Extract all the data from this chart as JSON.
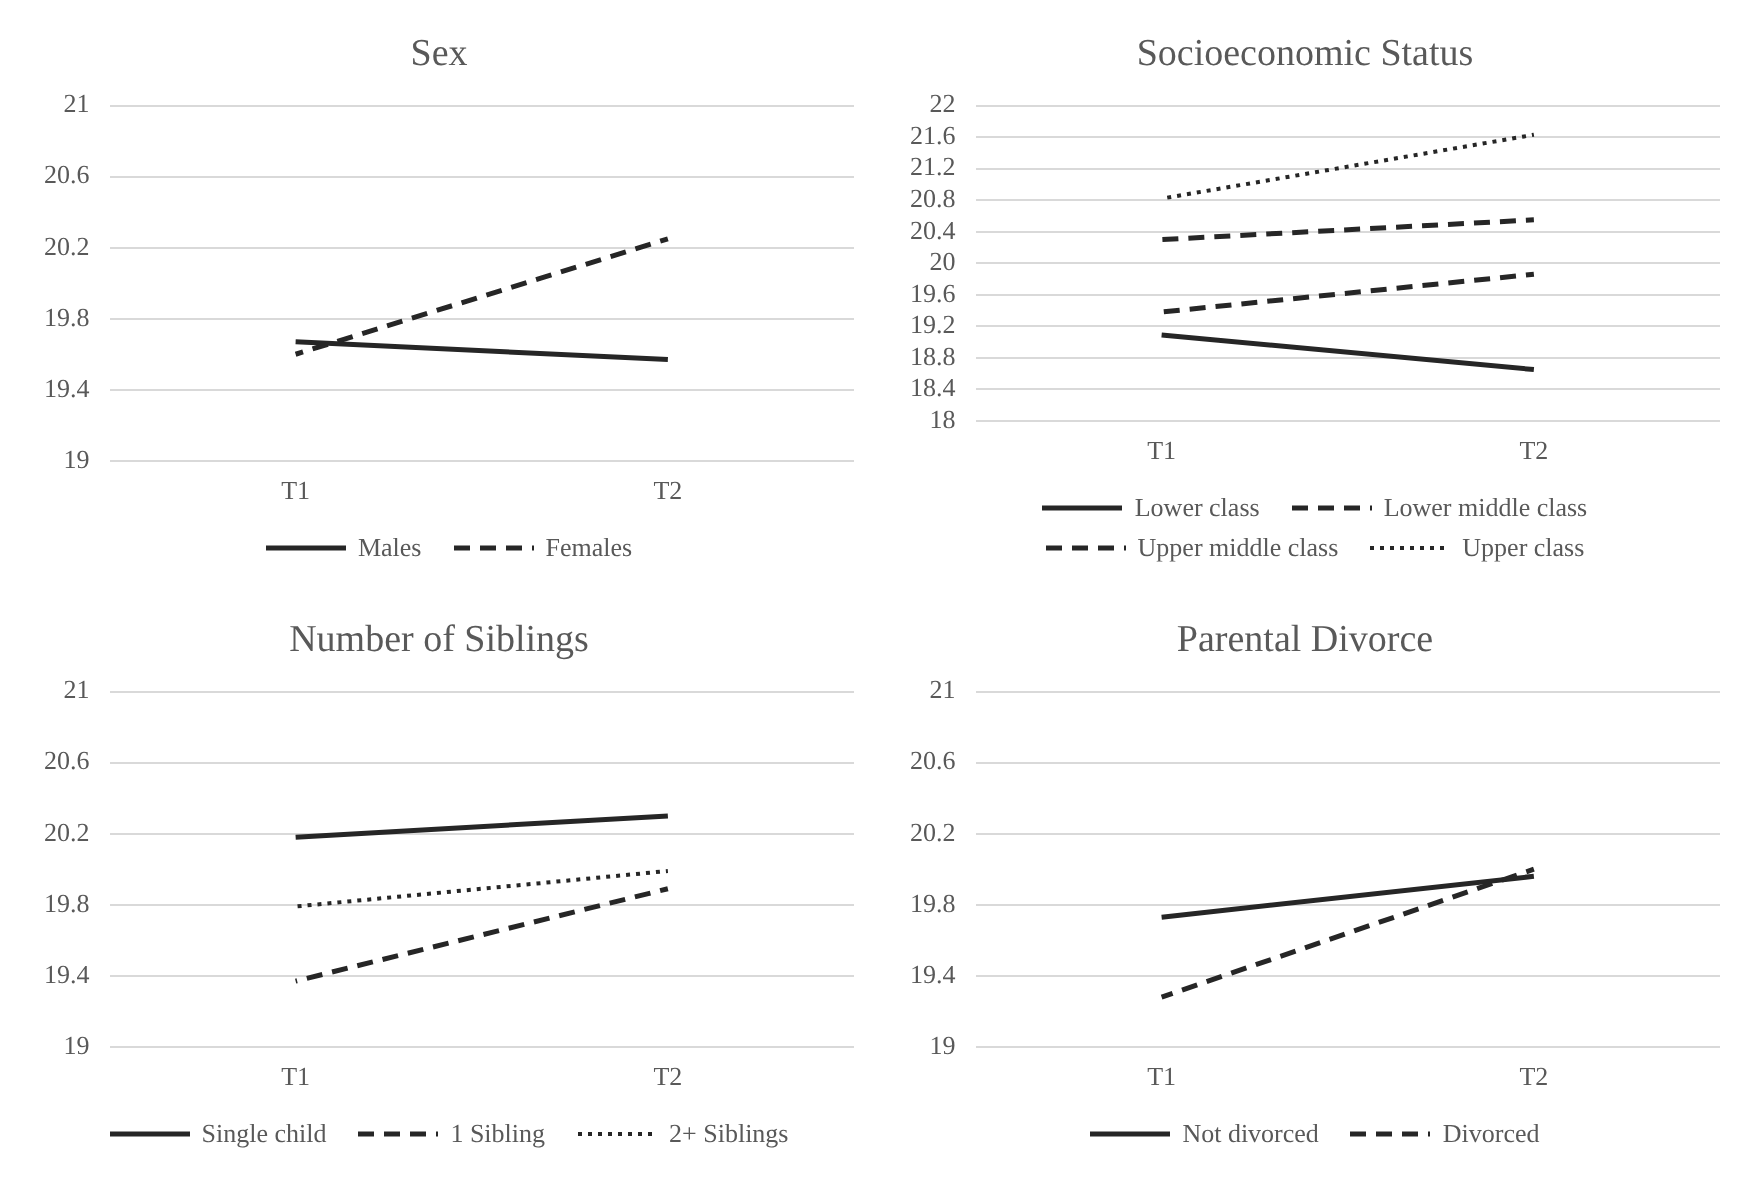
{
  "chart_data": [
    {
      "type": "line",
      "title": "Sex",
      "categories": [
        "T1",
        "T2"
      ],
      "ylim": [
        19,
        21
      ],
      "yticks": [
        19,
        19.4,
        19.8,
        20.2,
        20.6,
        21
      ],
      "grid": "y",
      "legend": "bottom",
      "series": [
        {
          "name": "Males",
          "color": "#262626",
          "line_style": "solid",
          "values": [
            19.67,
            19.57
          ]
        },
        {
          "name": "Females",
          "color": "#262626",
          "line_style": "dashed",
          "values": [
            19.6,
            20.25
          ]
        }
      ]
    },
    {
      "type": "line",
      "title": "Socioeconomic Status",
      "categories": [
        "T1",
        "T2"
      ],
      "ylim": [
        18,
        22
      ],
      "yticks": [
        18,
        18.4,
        18.8,
        19.2,
        19.6,
        20,
        20.4,
        20.8,
        21.2,
        21.6,
        22
      ],
      "grid": "y",
      "legend": "bottom",
      "series": [
        {
          "name": "Lower class",
          "color": "#262626",
          "line_style": "solid",
          "values": [
            19.09,
            18.65
          ]
        },
        {
          "name": "Lower middle class",
          "color": "#262626",
          "line_style": "dashed",
          "values": [
            19.38,
            19.86
          ]
        },
        {
          "name": "Upper middle class",
          "color": "#262626",
          "line_style": "dashed",
          "values": [
            20.3,
            20.55
          ]
        },
        {
          "name": "Upper class",
          "color": "#262626",
          "line_style": "dotted",
          "values": [
            20.82,
            21.63
          ]
        }
      ]
    },
    {
      "type": "line",
      "title": "Number of Siblings",
      "categories": [
        "T1",
        "T2"
      ],
      "ylim": [
        19,
        21
      ],
      "yticks": [
        19,
        19.4,
        19.8,
        20.2,
        20.6,
        21
      ],
      "grid": "y",
      "legend": "bottom",
      "series": [
        {
          "name": "Single child",
          "color": "#262626",
          "line_style": "solid",
          "values": [
            20.18,
            20.3
          ]
        },
        {
          "name": "1 Sibling",
          "color": "#262626",
          "line_style": "dashed",
          "values": [
            19.37,
            19.89
          ]
        },
        {
          "name": "2+ Siblings",
          "color": "#262626",
          "line_style": "dotted",
          "values": [
            19.79,
            19.99
          ]
        }
      ]
    },
    {
      "type": "line",
      "title": "Parental Divorce",
      "categories": [
        "T1",
        "T2"
      ],
      "ylim": [
        19,
        21
      ],
      "yticks": [
        19,
        19.4,
        19.8,
        20.2,
        20.6,
        21
      ],
      "grid": "y",
      "legend": "bottom",
      "series": [
        {
          "name": "Not divorced",
          "color": "#262626",
          "line_style": "solid",
          "values": [
            19.73,
            19.96
          ]
        },
        {
          "name": "Divorced",
          "color": "#262626",
          "line_style": "dashed",
          "values": [
            19.28,
            20.0
          ]
        }
      ]
    }
  ]
}
